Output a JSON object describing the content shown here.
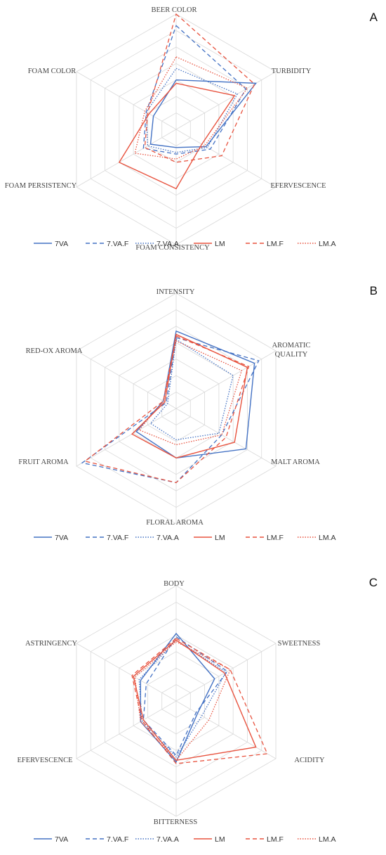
{
  "colors": {
    "blue": "#4472c4",
    "red": "#e8533f",
    "grid": "#d9d9d9"
  },
  "chart_data": [
    {
      "type": "radar",
      "panel": "A",
      "axes": [
        "BEER COLOR",
        "TURBIDITY",
        "EFERVESCENCE",
        "FOAM CONSISTENCY",
        "FOAM PERSISTENCY",
        "FOAM COLOR"
      ],
      "scale": [
        0,
        7
      ],
      "grid": true,
      "legend_position": "bottom",
      "series": [
        {
          "name": "7VA",
          "color": "blue",
          "dash": "solid",
          "values": [
            3.0,
            5.6,
            2.1,
            1.1,
            1.8,
            1.6
          ]
        },
        {
          "name": "7.VA.F",
          "color": "blue",
          "dash": "dashed",
          "values": [
            6.3,
            4.9,
            2.4,
            1.5,
            2.3,
            2.1
          ]
        },
        {
          "name": "7.VA.A",
          "color": "blue",
          "dash": "dotted",
          "values": [
            3.7,
            4.3,
            2.2,
            1.4,
            2.0,
            2.1
          ]
        },
        {
          "name": "LM",
          "color": "red",
          "dash": "solid",
          "values": [
            2.8,
            4.1,
            1.8,
            3.6,
            4.0,
            1.9
          ]
        },
        {
          "name": "LM.F",
          "color": "red",
          "dash": "dashed",
          "values": [
            7.0,
            5.5,
            3.2,
            2.0,
            2.2,
            2.0
          ]
        },
        {
          "name": "LM.A",
          "color": "red",
          "dash": "dotted",
          "values": [
            4.4,
            5.0,
            2.0,
            1.8,
            2.9,
            2.2
          ]
        }
      ]
    },
    {
      "type": "radar",
      "panel": "B",
      "axes": [
        "INTENSITY",
        "AROMATIC QUALITY",
        "MALT AROMA",
        "FLORAL AROMA",
        "FRUIT AROMA",
        "RED-OX AROMA"
      ],
      "scale": [
        0,
        7
      ],
      "grid": true,
      "legend_position": "bottom",
      "series": [
        {
          "name": "7VA",
          "color": "blue",
          "dash": "solid",
          "values": [
            4.7,
            5.5,
            4.9,
            3.0,
            2.8,
            0.9
          ]
        },
        {
          "name": "7.VA.F",
          "color": "blue",
          "dash": "dashed",
          "values": [
            4.3,
            5.8,
            3.2,
            4.5,
            6.6,
            0.7
          ]
        },
        {
          "name": "7.VA.A",
          "color": "blue",
          "dash": "dotted",
          "values": [
            4.2,
            4.0,
            3.0,
            1.9,
            1.8,
            0.6
          ]
        },
        {
          "name": "LM",
          "color": "red",
          "dash": "solid",
          "values": [
            4.5,
            5.0,
            4.1,
            3.0,
            3.1,
            0.8
          ]
        },
        {
          "name": "LM.F",
          "color": "red",
          "dash": "dashed",
          "values": [
            4.4,
            5.1,
            3.5,
            4.5,
            6.4,
            0.9
          ]
        },
        {
          "name": "LM.A",
          "color": "red",
          "dash": "dotted",
          "values": [
            4.1,
            4.6,
            3.2,
            2.2,
            2.6,
            0.9
          ]
        }
      ]
    },
    {
      "type": "radar",
      "panel": "C",
      "axes": [
        "BODY",
        "SWEETNESS",
        "ACIDITY",
        "BITTERNESS",
        "EFERVESCENCE",
        "ASTRINGENCY"
      ],
      "scale": [
        0,
        7
      ],
      "grid": true,
      "legend_position": "bottom",
      "series": [
        {
          "name": "7VA",
          "color": "blue",
          "dash": "solid",
          "values": [
            4.1,
            2.7,
            1.5,
            3.7,
            2.5,
            2.5
          ]
        },
        {
          "name": "7.VA.F",
          "color": "blue",
          "dash": "dashed",
          "values": [
            3.9,
            3.6,
            1.4,
            3.3,
            2.3,
            2.1
          ]
        },
        {
          "name": "7.VA.A",
          "color": "blue",
          "dash": "dotted",
          "values": [
            3.7,
            3.5,
            1.8,
            3.4,
            2.4,
            2.6
          ]
        },
        {
          "name": "LM",
          "color": "red",
          "dash": "solid",
          "values": [
            3.7,
            3.4,
            5.6,
            3.6,
            2.3,
            3.0
          ]
        },
        {
          "name": "LM.F",
          "color": "red",
          "dash": "dashed",
          "values": [
            3.8,
            3.8,
            6.4,
            3.8,
            2.4,
            3.1
          ]
        },
        {
          "name": "LM.A",
          "color": "red",
          "dash": "dotted",
          "values": [
            3.6,
            3.8,
            2.3,
            3.6,
            2.5,
            2.9
          ]
        }
      ]
    }
  ],
  "legend": [
    "7VA",
    "7.VA.F",
    "7.VA.A",
    "LM",
    "LM.F",
    "LM.A"
  ]
}
